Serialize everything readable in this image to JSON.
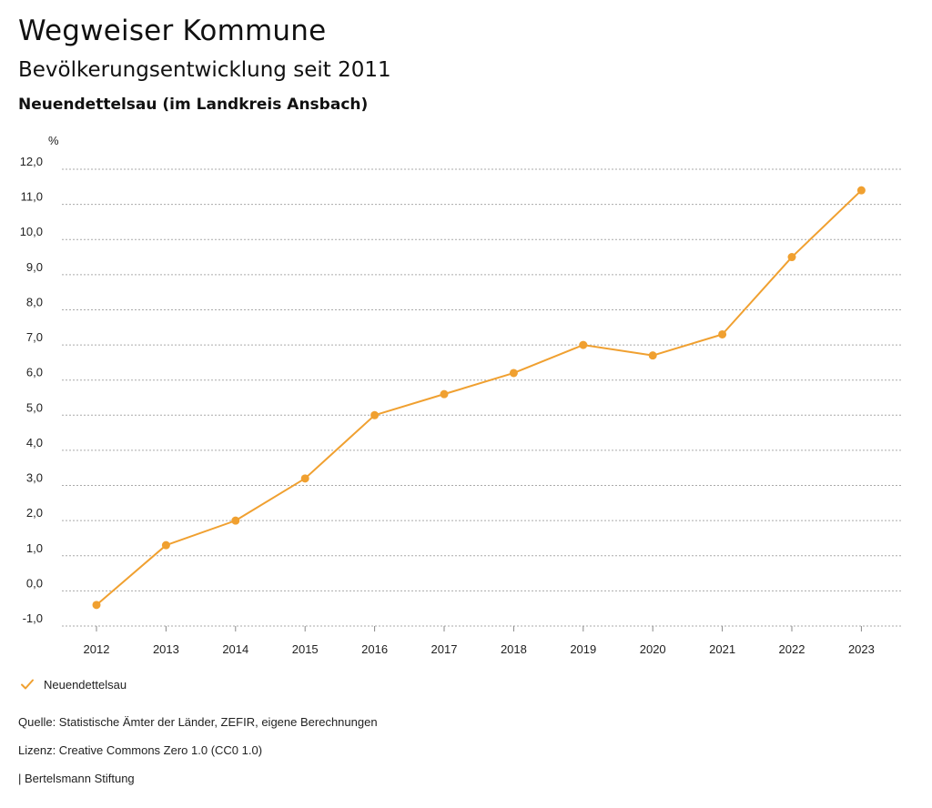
{
  "header": {
    "title": "Wegweiser Kommune",
    "subtitle": "Bevölkerungsentwicklung seit 2011",
    "region": "Neuendettelsau (im Landkreis Ansbach)"
  },
  "colors": {
    "series": "#f0a030",
    "grid": "#aaaaaa",
    "text": "#111111"
  },
  "legend": {
    "label": "Neuendettelsau",
    "icon": "check-icon"
  },
  "footer": {
    "source": "Quelle: Statistische Ämter der Länder, ZEFIR, eigene Berechnungen",
    "license": "Lizenz: Creative Commons Zero 1.0 (CC0 1.0)",
    "publisher": "| Bertelsmann Stiftung"
  },
  "chart_data": {
    "type": "line",
    "title": "Bevölkerungsentwicklung seit 2011",
    "ylabel": "%",
    "xlabel": "",
    "ylim": [
      -1,
      12
    ],
    "yticks": [
      -1,
      0,
      1,
      2,
      3,
      4,
      5,
      6,
      7,
      8,
      9,
      10,
      11,
      12
    ],
    "ytick_labels": [
      "-1,0",
      "0,0",
      "1,0",
      "2,0",
      "3,0",
      "4,0",
      "5,0",
      "6,0",
      "7,0",
      "8,0",
      "9,0",
      "10,0",
      "11,0",
      "12,0"
    ],
    "grid": true,
    "categories": [
      "2012",
      "2013",
      "2014",
      "2015",
      "2016",
      "2017",
      "2018",
      "2019",
      "2020",
      "2021",
      "2022",
      "2023"
    ],
    "series": [
      {
        "name": "Neuendettelsau",
        "values": [
          -0.4,
          1.3,
          2.0,
          3.2,
          5.0,
          5.6,
          6.2,
          7.0,
          6.7,
          7.3,
          9.5,
          11.4
        ]
      }
    ]
  }
}
